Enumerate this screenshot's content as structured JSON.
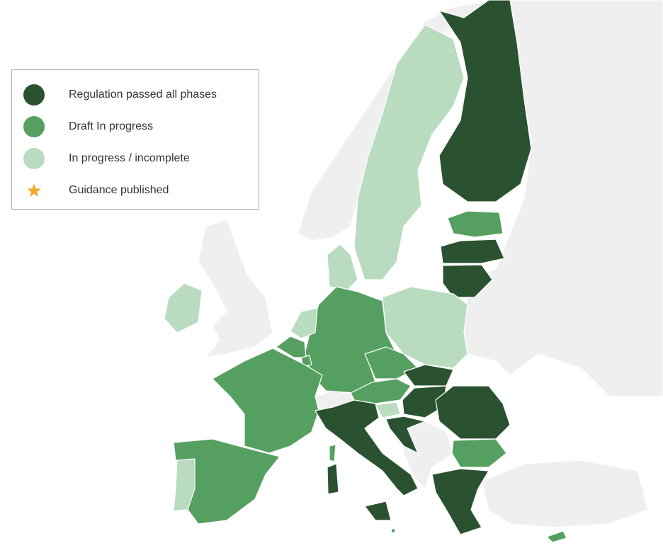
{
  "legend": {
    "items": [
      {
        "label": "Regulation passed all phases",
        "color": "#2b5230",
        "icon": "circle"
      },
      {
        "label": "Draft In progress",
        "color": "#55a060",
        "icon": "circle"
      },
      {
        "label": "In progress / incomplete",
        "color": "#b9dbc0",
        "icon": "circle"
      },
      {
        "label": "Guidance published",
        "color": "#f5a623",
        "icon": "star-icon"
      }
    ]
  },
  "colors": {
    "non_eu": "#efefef",
    "passed": "#2b5230",
    "draft": "#55a060",
    "incomplete": "#b9dbc0"
  },
  "countries": {
    "finland": "passed",
    "latvia": "passed",
    "lithuania": "passed",
    "italy": "passed",
    "slovakia": "passed",
    "hungary": "passed",
    "croatia": "passed",
    "romania": "passed",
    "greece": "passed",
    "estonia": "draft",
    "germany": "draft",
    "france": "draft",
    "spain": "draft",
    "belgium": "draft",
    "luxembourg": "draft",
    "czechia": "draft",
    "austria": "draft",
    "bulgaria": "draft",
    "cyprus": "draft",
    "malta": "draft",
    "sweden": "incomplete",
    "denmark": "incomplete",
    "netherlands": "incomplete",
    "poland": "incomplete",
    "portugal": "incomplete",
    "ireland": "incomplete",
    "slovenia": "incomplete"
  }
}
